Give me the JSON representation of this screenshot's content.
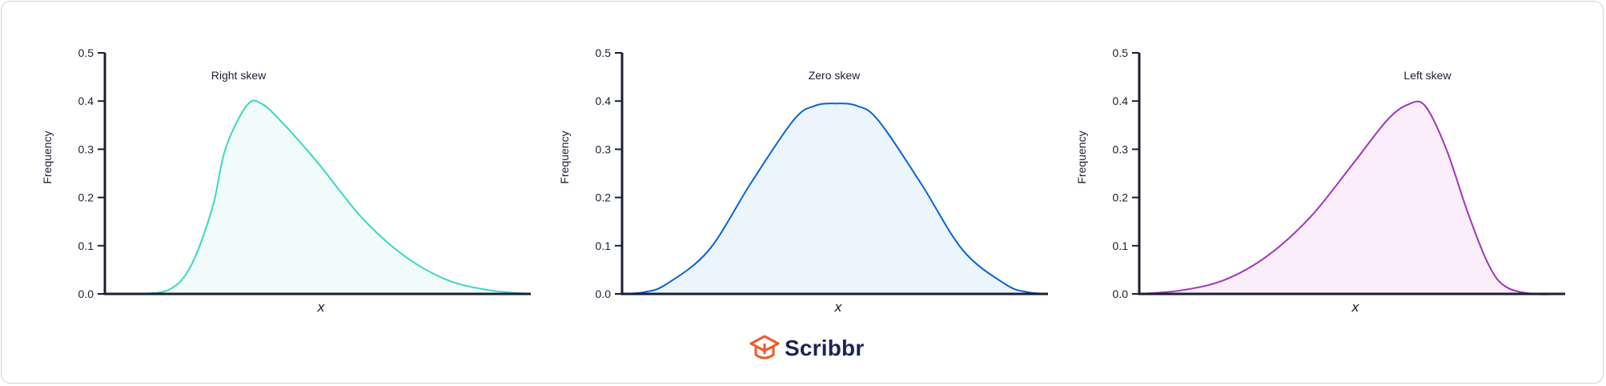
{
  "brand": {
    "name": "Scribbr",
    "icon": "graduation-cap-icon",
    "color": "#f05a28",
    "text_color": "#1b2452"
  },
  "chart_data": [
    {
      "type": "area",
      "annotations": [
        {
          "text": "Right skew"
        }
      ],
      "xlabel": "x",
      "ylabel": "Frequency",
      "ylim": [
        0,
        0.5
      ],
      "yticks": [
        "0.0",
        "0.1",
        "0.2",
        "0.3",
        "0.4",
        "0.5"
      ],
      "x": [
        0,
        0.075,
        0.15,
        0.2,
        0.25,
        0.28,
        0.33,
        0.365,
        0.42,
        0.5,
        0.6,
        0.7,
        0.8,
        0.9,
        1.0
      ],
      "values": [
        0,
        0.0,
        0.01,
        0.06,
        0.18,
        0.3,
        0.39,
        0.395,
        0.35,
        0.27,
        0.16,
        0.08,
        0.03,
        0.008,
        0
      ],
      "color": "#3dd6c4",
      "fill": "#f1fcfa",
      "grid": false
    },
    {
      "type": "area",
      "annotations": [
        {
          "text": "Zero skew"
        }
      ],
      "xlabel": "x",
      "ylabel": "Frequency",
      "ylim": [
        0,
        0.5
      ],
      "yticks": [
        "0.0",
        "0.1",
        "0.2",
        "0.3",
        "0.4",
        "0.5"
      ],
      "x": [
        0,
        0.05,
        0.1,
        0.2,
        0.3,
        0.4,
        0.45,
        0.5,
        0.55,
        0.6,
        0.7,
        0.8,
        0.9,
        0.95,
        1.0
      ],
      "values": [
        0,
        0.004,
        0.02,
        0.09,
        0.23,
        0.36,
        0.39,
        0.395,
        0.39,
        0.36,
        0.23,
        0.09,
        0.02,
        0.004,
        0
      ],
      "color": "#0a64d4",
      "fill": "#ecf4fc",
      "grid": false
    },
    {
      "type": "area",
      "annotations": [
        {
          "text": "Left skew"
        }
      ],
      "xlabel": "x",
      "ylabel": "Frequency",
      "ylim": [
        0,
        0.5
      ],
      "yticks": [
        "0.0",
        "0.1",
        "0.2",
        "0.3",
        "0.4",
        "0.5"
      ],
      "x": [
        0,
        0.1,
        0.2,
        0.3,
        0.4,
        0.5,
        0.58,
        0.63,
        0.67,
        0.72,
        0.77,
        0.82,
        0.86,
        0.925,
        1.0
      ],
      "values": [
        0,
        0.008,
        0.03,
        0.08,
        0.16,
        0.27,
        0.36,
        0.393,
        0.39,
        0.3,
        0.17,
        0.06,
        0.015,
        0.0,
        0
      ],
      "color": "#a235b8",
      "fill": "#fbeefb",
      "grid": false
    }
  ]
}
